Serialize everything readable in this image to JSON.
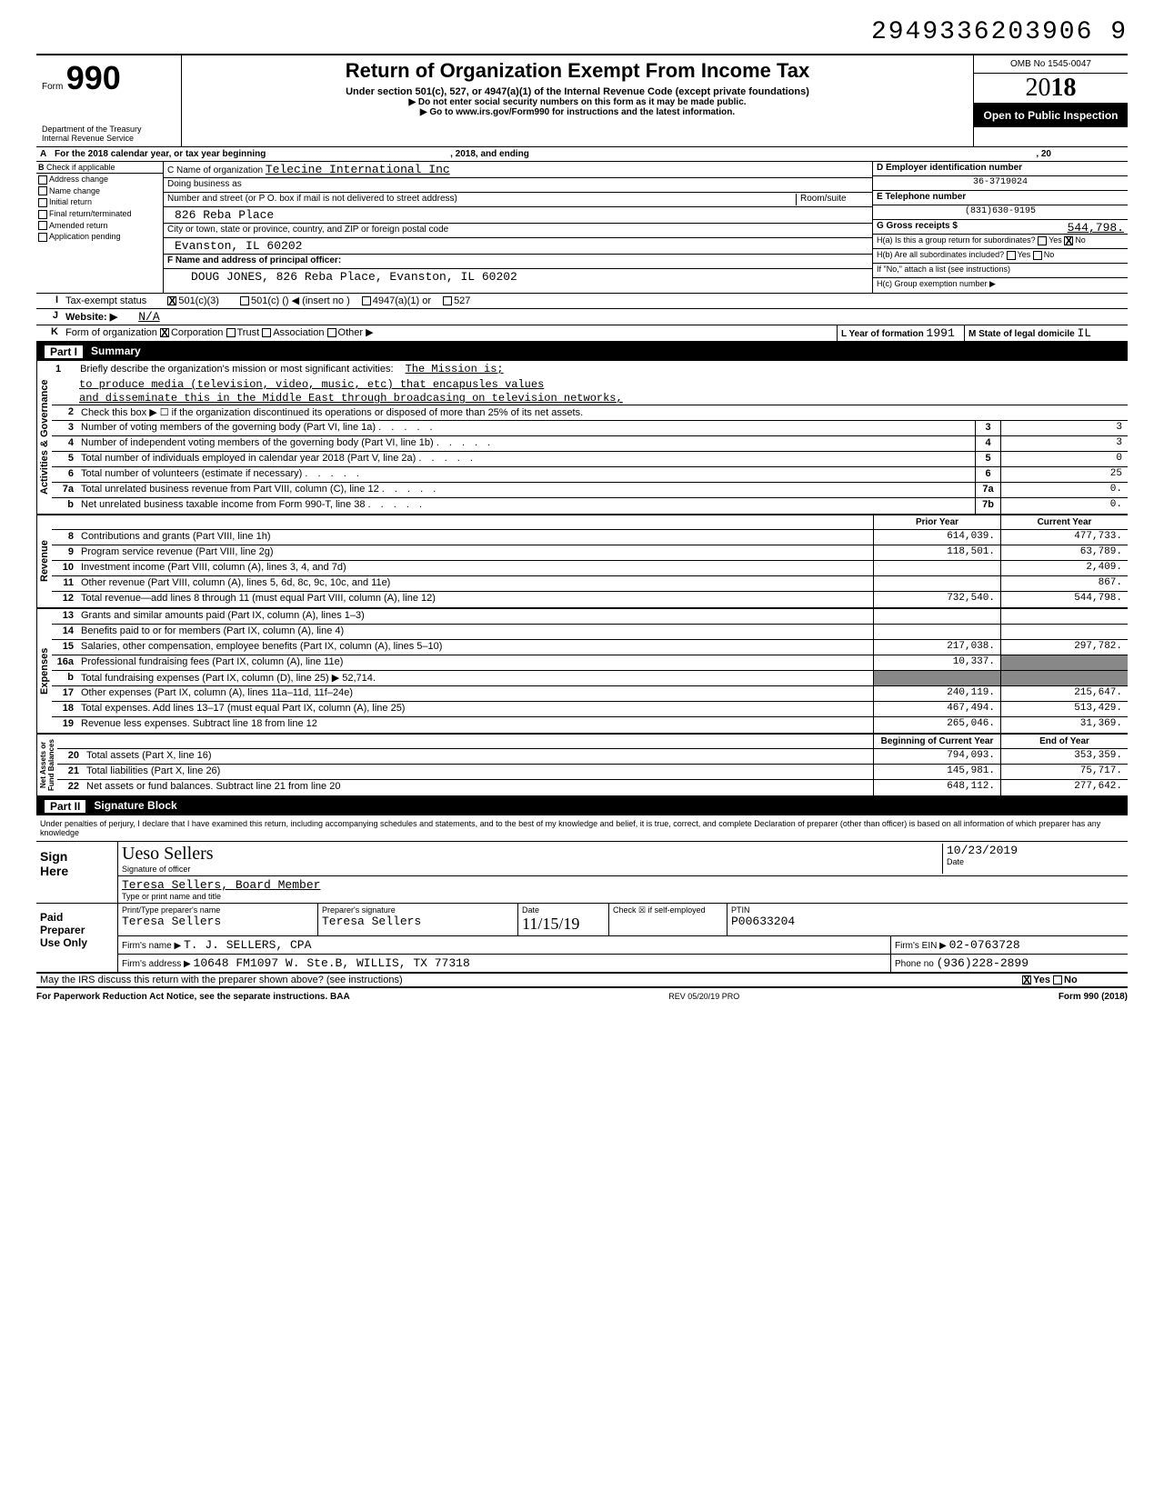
{
  "doc_id": "2949336203906 9",
  "header": {
    "form_label": "Form",
    "form_number": "990",
    "dept": "Department of the Treasury\nInternal Revenue Service",
    "title": "Return of Organization Exempt From Income Tax",
    "subtitle": "Under section 501(c), 527, or 4947(a)(1) of the Internal Revenue Code (except private foundations)",
    "instr1": "▶ Do not enter social security numbers on this form as it may be made public.",
    "instr2": "▶ Go to www.irs.gov/Form990 for instructions and the latest information.",
    "omb": "OMB No 1545-0047",
    "year_prefix": "20",
    "year_bold": "18",
    "open_public": "Open to Public Inspection"
  },
  "row_a": {
    "label_a": "A",
    "text_a": "For the 2018 calendar year, or tax year beginning",
    "mid": ", 2018, and ending",
    "end": ", 20"
  },
  "section_b": {
    "b_label": "B",
    "b_text": "Check if applicable",
    "checks": [
      "Address change",
      "Name change",
      "Initial return",
      "Final return/terminated",
      "Amended return",
      "Application pending"
    ],
    "c_label": "C Name of organization",
    "org_name": "Telecine International Inc",
    "dba": "Doing business as",
    "addr_label": "Number and street (or P O. box if mail is not delivered to street address)",
    "room": "Room/suite",
    "addr": "826 Reba Place",
    "city_label": "City or town, state or province, country, and ZIP or foreign postal code",
    "city": "Evanston, IL 60202",
    "f_label": "F Name and address of principal officer:",
    "f_value": "DOUG JONES, 826 Reba Place, Evanston, IL 60202",
    "d_label": "D Employer identification number",
    "d_value": "36-3719024",
    "e_label": "E Telephone number",
    "e_value": "(831)630-9195",
    "g_label": "G Gross receipts $",
    "g_value": "544,798.",
    "h_a": "H(a) Is this a group return for subordinates?",
    "h_a_yes": "Yes",
    "h_a_no": "No",
    "h_b": "H(b) Are all subordinates included?",
    "h_b_hint": "If \"No,\" attach a list (see instructions)",
    "h_c": "H(c) Group exemption number ▶"
  },
  "row_i": {
    "i_label": "I",
    "i_text": "Tax-exempt status",
    "opt1": "501(c)(3)",
    "opt2": "501(c) (",
    "opt2b": ") ◀ (insert no )",
    "opt3": "4947(a)(1) or",
    "opt4": "527"
  },
  "row_j": {
    "j_label": "J",
    "j_text": "Website: ▶",
    "j_value": "N/A"
  },
  "row_k": {
    "k_label": "K",
    "k_text": "Form of organization",
    "opts": [
      "Corporation",
      "Trust",
      "Association",
      "Other ▶"
    ],
    "l_label": "L Year of formation",
    "l_value": "1991",
    "m_label": "M State of legal domicile",
    "m_value": "IL"
  },
  "part1": {
    "header": "Part I",
    "title": "Summary"
  },
  "governance": {
    "vbar": "Activities & Governance",
    "line1_num": "1",
    "line1": "Briefly describe the organization's mission or most significant activities:",
    "mission1": "The Mission is;",
    "mission2": "to produce media (television, video, music, etc) that encapusles values",
    "mission3": "and disseminate this in the Middle East through broadcasing on television networks,",
    "line2_num": "2",
    "line2": "Check this box ▶ ☐ if the organization discontinued its operations or disposed of more than 25% of its net assets.",
    "rows": [
      {
        "n": "3",
        "label": "Number of voting members of the governing body (Part VI, line 1a)",
        "box": "3",
        "val": "3"
      },
      {
        "n": "4",
        "label": "Number of independent voting members of the governing body (Part VI, line 1b)",
        "box": "4",
        "val": "3"
      },
      {
        "n": "5",
        "label": "Total number of individuals employed in calendar year 2018 (Part V, line 2a)",
        "box": "5",
        "val": "0"
      },
      {
        "n": "6",
        "label": "Total number of volunteers (estimate if necessary)",
        "box": "6",
        "val": "25"
      },
      {
        "n": "7a",
        "label": "Total unrelated business revenue from Part VIII, column (C), line 12",
        "box": "7a",
        "val": "0."
      },
      {
        "n": "b",
        "label": "Net unrelated business taxable income from Form 990-T, line 38",
        "box": "7b",
        "val": "0."
      }
    ]
  },
  "revenue": {
    "vbar": "Revenue",
    "head1": "Prior Year",
    "head2": "Current Year",
    "rows": [
      {
        "n": "8",
        "label": "Contributions and grants (Part VIII, line 1h)",
        "v1": "614,039.",
        "v2": "477,733."
      },
      {
        "n": "9",
        "label": "Program service revenue (Part VIII, line 2g)",
        "v1": "118,501.",
        "v2": "63,789."
      },
      {
        "n": "10",
        "label": "Investment income (Part VIII, column (A), lines 3, 4, and 7d)",
        "v1": "",
        "v2": "2,409."
      },
      {
        "n": "11",
        "label": "Other revenue (Part VIII, column (A), lines 5, 6d, 8c, 9c, 10c, and 11e)",
        "v1": "",
        "v2": "867."
      },
      {
        "n": "12",
        "label": "Total revenue—add lines 8 through 11 (must equal Part VIII, column (A), line 12)",
        "v1": "732,540.",
        "v2": "544,798."
      }
    ]
  },
  "expenses": {
    "vbar": "Expenses",
    "rows": [
      {
        "n": "13",
        "label": "Grants and similar amounts paid (Part IX, column (A), lines 1–3)",
        "v1": "",
        "v2": ""
      },
      {
        "n": "14",
        "label": "Benefits paid to or for members (Part IX, column (A), line 4)",
        "v1": "",
        "v2": ""
      },
      {
        "n": "15",
        "label": "Salaries, other compensation, employee benefits (Part IX, column (A), lines 5–10)",
        "v1": "217,038.",
        "v2": "297,782."
      },
      {
        "n": "16a",
        "label": "Professional fundraising fees (Part IX, column (A), line 11e)",
        "v1": "10,337.",
        "v2": "",
        "v2shade": true
      },
      {
        "n": "b",
        "label": "Total fundraising expenses (Part IX, column (D), line 25) ▶        52,714.",
        "v1": "",
        "v2": "",
        "v1shade": true,
        "v2shade": true
      },
      {
        "n": "17",
        "label": "Other expenses (Part IX, column (A), lines 11a–11d, 11f–24e)",
        "v1": "240,119.",
        "v2": "215,647."
      },
      {
        "n": "18",
        "label": "Total expenses. Add lines 13–17 (must equal Part IX, column (A), line 25)",
        "v1": "467,494.",
        "v2": "513,429."
      },
      {
        "n": "19",
        "label": "Revenue less expenses. Subtract line 18 from line 12",
        "v1": "265,046.",
        "v2": "31,369."
      }
    ]
  },
  "netassets": {
    "vbar": "Net Assets or\nFund Balances",
    "head1": "Beginning of Current Year",
    "head2": "End of Year",
    "rows": [
      {
        "n": "20",
        "label": "Total assets (Part X, line 16)",
        "v1": "794,093.",
        "v2": "353,359."
      },
      {
        "n": "21",
        "label": "Total liabilities (Part X, line 26)",
        "v1": "145,981.",
        "v2": "75,717."
      },
      {
        "n": "22",
        "label": "Net assets or fund balances. Subtract line 21 from line 20",
        "v1": "648,112.",
        "v2": "277,642."
      }
    ]
  },
  "part2": {
    "header": "Part II",
    "title": "Signature Block"
  },
  "perjury": "Under penalties of perjury, I declare that I have examined this return, including accompanying schedules and statements, and to the best of my knowledge and belief, it is true, correct, and complete Declaration of preparer (other than officer) is based on all information of which preparer has any knowledge",
  "sign": {
    "left": "Sign\nHere",
    "sig_label": "Signature of officer",
    "date_label": "Date",
    "date_val": "10/23/2019",
    "name": "Teresa Sellers, Board Member",
    "name_label": "Type or print name and title"
  },
  "prep": {
    "left": "Paid\nPreparer\nUse Only",
    "h1": "Print/Type preparer's name",
    "h2": "Preparer's signature",
    "h3": "Date",
    "h4_chk": "Check ☒ if self-employed",
    "h5": "PTIN",
    "name": "Teresa Sellers",
    "sig": "Teresa Sellers",
    "date": "11/15/19",
    "ptin": "P00633204",
    "firm_name_l": "Firm's name ▶",
    "firm_name": "T. J. SELLERS, CPA",
    "firm_ein_l": "Firm's EIN ▶",
    "firm_ein": "02-0763728",
    "firm_addr_l": "Firm's address ▶",
    "firm_addr": "10648 FM1097 W. Ste.B, WILLIS, TX 77318",
    "phone_l": "Phone no",
    "phone": "(936)228-2899"
  },
  "irs_q": "May the IRS discuss this return with the preparer shown above? (see instructions)",
  "irs_yes": "Yes",
  "irs_no": "No",
  "footer": {
    "left": "For Paperwork Reduction Act Notice, see the separate instructions. BAA",
    "mid": "REV 05/20/19 PRO",
    "right": "Form 990 (2018)"
  }
}
